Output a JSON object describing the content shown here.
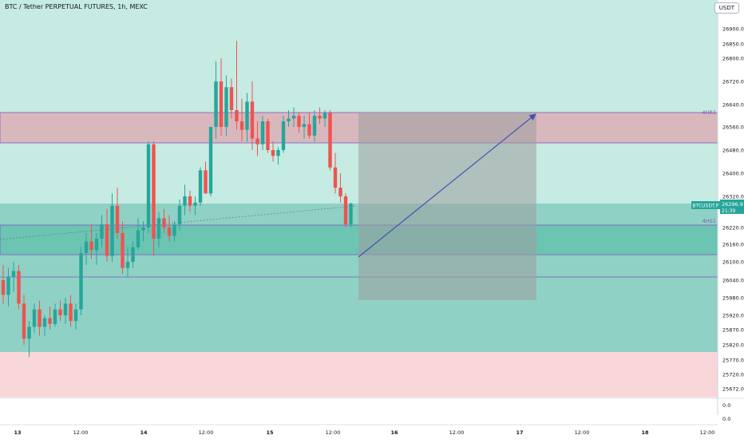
{
  "header": {
    "title": "BTC / Tether PERPETUAL FUTURES, 1h, MEXC",
    "currency_label": "USDT"
  },
  "colors": {
    "up": "#26a69a",
    "down": "#ef5350",
    "zone_green": "#b7e3d9",
    "zone_teal": "#8fd1c4",
    "zone_red": "#f8d3d7",
    "zone_pink": "#d9b4bc",
    "line_purple": "#7e57c2",
    "arrow": "#3f51b5",
    "price_tag": "#26a69a"
  },
  "chart_data": {
    "type": "candlestick",
    "symbol_tag": "BTCUSDT.P",
    "last_price": "26296.9",
    "countdown": "21:39",
    "y_ticks": [
      "26900.0",
      "26850.0",
      "26800.0",
      "26720.0",
      "26640.0",
      "26560.0",
      "26480.0",
      "26400.0",
      "26320.0",
      "26220.0",
      "26160.0",
      "26100.0",
      "26040.0",
      "25980.0",
      "25920.0",
      "25870.0",
      "25820.0",
      "25770.0",
      "25720.0",
      "25672.0"
    ],
    "x_ticks": [
      "13",
      "12:00",
      "14",
      "12:00",
      "15",
      "12:00",
      "16",
      "12:00",
      "17",
      "12:00",
      "18",
      "12:00"
    ],
    "volume_ticks": [
      "0.0",
      "0.0"
    ],
    "levels": [
      {
        "name": "4HR1",
        "label": "4HR1",
        "price": 26600
      },
      {
        "name": "4HS1",
        "label": "4HS1",
        "price": 26230
      }
    ],
    "candles": [
      {
        "o": 26040,
        "h": 26090,
        "l": 25960,
        "c": 25990
      },
      {
        "o": 25990,
        "h": 26080,
        "l": 25950,
        "c": 26050
      },
      {
        "o": 26050,
        "h": 26100,
        "l": 26000,
        "c": 26070
      },
      {
        "o": 26070,
        "h": 26090,
        "l": 25940,
        "c": 25960
      },
      {
        "o": 25960,
        "h": 25990,
        "l": 25820,
        "c": 25840
      },
      {
        "o": 25840,
        "h": 25900,
        "l": 25780,
        "c": 25880
      },
      {
        "o": 25880,
        "h": 25960,
        "l": 25860,
        "c": 25940
      },
      {
        "o": 25940,
        "h": 25970,
        "l": 25850,
        "c": 25880
      },
      {
        "o": 25880,
        "h": 25920,
        "l": 25850,
        "c": 25910
      },
      {
        "o": 25910,
        "h": 25950,
        "l": 25870,
        "c": 25890
      },
      {
        "o": 25890,
        "h": 25960,
        "l": 25880,
        "c": 25940
      },
      {
        "o": 25940,
        "h": 25970,
        "l": 25900,
        "c": 25920
      },
      {
        "o": 25920,
        "h": 25980,
        "l": 25890,
        "c": 25960
      },
      {
        "o": 25960,
        "h": 25990,
        "l": 25880,
        "c": 25900
      },
      {
        "o": 25900,
        "h": 25960,
        "l": 25870,
        "c": 25940
      },
      {
        "o": 25940,
        "h": 26150,
        "l": 25920,
        "c": 26130
      },
      {
        "o": 26130,
        "h": 26200,
        "l": 26090,
        "c": 26170
      },
      {
        "o": 26170,
        "h": 26230,
        "l": 26110,
        "c": 26140
      },
      {
        "o": 26140,
        "h": 26200,
        "l": 26090,
        "c": 26180
      },
      {
        "o": 26180,
        "h": 26260,
        "l": 26150,
        "c": 26230
      },
      {
        "o": 26230,
        "h": 26280,
        "l": 26100,
        "c": 26120
      },
      {
        "o": 26120,
        "h": 26330,
        "l": 26100,
        "c": 26290
      },
      {
        "o": 26290,
        "h": 26350,
        "l": 26180,
        "c": 26200
      },
      {
        "o": 26200,
        "h": 26240,
        "l": 26060,
        "c": 26080
      },
      {
        "o": 26080,
        "h": 26150,
        "l": 26050,
        "c": 26100
      },
      {
        "o": 26100,
        "h": 26170,
        "l": 26080,
        "c": 26150
      },
      {
        "o": 26150,
        "h": 26250,
        "l": 26140,
        "c": 26210
      },
      {
        "o": 26210,
        "h": 26240,
        "l": 26170,
        "c": 26220
      },
      {
        "o": 26220,
        "h": 26510,
        "l": 26200,
        "c": 26500
      },
      {
        "o": 26500,
        "h": 26510,
        "l": 26120,
        "c": 26180
      },
      {
        "o": 26180,
        "h": 26270,
        "l": 26150,
        "c": 26250
      },
      {
        "o": 26250,
        "h": 26280,
        "l": 26200,
        "c": 26220
      },
      {
        "o": 26220,
        "h": 26260,
        "l": 26170,
        "c": 26190
      },
      {
        "o": 26190,
        "h": 26240,
        "l": 26170,
        "c": 26230
      },
      {
        "o": 26230,
        "h": 26310,
        "l": 26210,
        "c": 26290
      },
      {
        "o": 26290,
        "h": 26360,
        "l": 26260,
        "c": 26320
      },
      {
        "o": 26320,
        "h": 26340,
        "l": 26270,
        "c": 26290
      },
      {
        "o": 26290,
        "h": 26320,
        "l": 26260,
        "c": 26300
      },
      {
        "o": 26300,
        "h": 26420,
        "l": 26290,
        "c": 26410
      },
      {
        "o": 26410,
        "h": 26440,
        "l": 26330,
        "c": 26330
      },
      {
        "o": 26330,
        "h": 26560,
        "l": 26320,
        "c": 26560
      },
      {
        "o": 26560,
        "h": 26790,
        "l": 26520,
        "c": 26720
      },
      {
        "o": 26720,
        "h": 26800,
        "l": 26530,
        "c": 26560
      },
      {
        "o": 26560,
        "h": 26740,
        "l": 26530,
        "c": 26700
      },
      {
        "o": 26700,
        "h": 26730,
        "l": 26590,
        "c": 26620
      },
      {
        "o": 26620,
        "h": 26860,
        "l": 26550,
        "c": 26580
      },
      {
        "o": 26580,
        "h": 26660,
        "l": 26510,
        "c": 26550
      },
      {
        "o": 26550,
        "h": 26680,
        "l": 26510,
        "c": 26650
      },
      {
        "o": 26650,
        "h": 26720,
        "l": 26480,
        "c": 26520
      },
      {
        "o": 26520,
        "h": 26580,
        "l": 26460,
        "c": 26500
      },
      {
        "o": 26500,
        "h": 26600,
        "l": 26480,
        "c": 26580
      },
      {
        "o": 26580,
        "h": 26590,
        "l": 26470,
        "c": 26480
      },
      {
        "o": 26480,
        "h": 26510,
        "l": 26440,
        "c": 26460
      },
      {
        "o": 26460,
        "h": 26490,
        "l": 26430,
        "c": 26480
      },
      {
        "o": 26480,
        "h": 26600,
        "l": 26470,
        "c": 26580
      },
      {
        "o": 26580,
        "h": 26620,
        "l": 26560,
        "c": 26590
      },
      {
        "o": 26590,
        "h": 26630,
        "l": 26560,
        "c": 26600
      },
      {
        "o": 26600,
        "h": 26610,
        "l": 26540,
        "c": 26560
      },
      {
        "o": 26560,
        "h": 26600,
        "l": 26520,
        "c": 26570
      },
      {
        "o": 26570,
        "h": 26610,
        "l": 26520,
        "c": 26530
      },
      {
        "o": 26530,
        "h": 26620,
        "l": 26510,
        "c": 26600
      },
      {
        "o": 26600,
        "h": 26630,
        "l": 26570,
        "c": 26590
      },
      {
        "o": 26590,
        "h": 26620,
        "l": 26560,
        "c": 26610
      },
      {
        "o": 26610,
        "h": 26620,
        "l": 26410,
        "c": 26420
      },
      {
        "o": 26420,
        "h": 26470,
        "l": 26330,
        "c": 26350
      },
      {
        "o": 26350,
        "h": 26400,
        "l": 26300,
        "c": 26320
      },
      {
        "o": 26320,
        "h": 26330,
        "l": 26220,
        "c": 26230
      },
      {
        "o": 26230,
        "h": 26300,
        "l": 26220,
        "c": 26297
      }
    ]
  }
}
